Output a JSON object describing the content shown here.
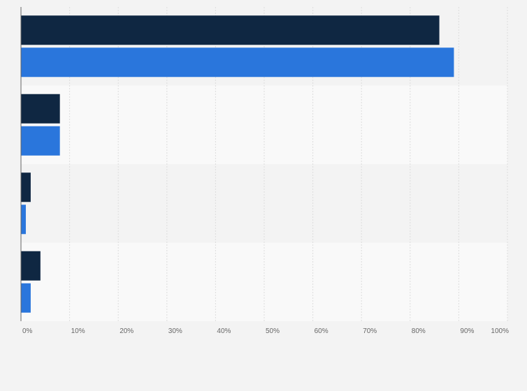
{
  "chart_data": {
    "type": "bar",
    "orientation": "horizontal",
    "categories": [
      "",
      "",
      "",
      ""
    ],
    "series": [
      {
        "color": "#0f2742",
        "values": [
          86,
          8,
          2,
          4
        ]
      },
      {
        "color": "#2a76dc",
        "values": [
          89,
          8,
          1,
          2
        ]
      }
    ],
    "xlim": [
      0,
      100
    ],
    "x_tick_labels": [
      "0%",
      "10%",
      "20%",
      "30%",
      "40%",
      "50%",
      "60%",
      "70%",
      "80%",
      "90%",
      "100%"
    ],
    "grid": true,
    "legend": "none",
    "title": "",
    "xlabel": "",
    "ylabel": ""
  }
}
